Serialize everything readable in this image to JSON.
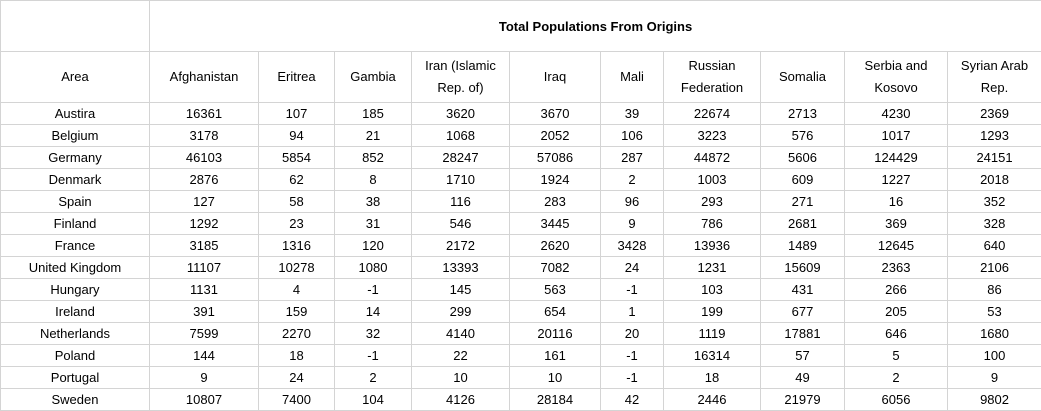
{
  "title": "Total Populations From Origins",
  "area_header": "Area",
  "columns": [
    "Afghanistan",
    "Eritrea",
    "Gambia",
    "Iran (Islamic Rep. of)",
    "Iraq",
    "Mali",
    "Russian Federation",
    "Somalia",
    "Serbia and Kosovo",
    "Syrian Arab Rep."
  ],
  "rows": [
    {
      "area": "Austira",
      "values": [
        "16361",
        "107",
        "185",
        "3620",
        "3670",
        "39",
        "22674",
        "2713",
        "4230",
        "2369"
      ]
    },
    {
      "area": "Belgium",
      "values": [
        "3178",
        "94",
        "21",
        "1068",
        "2052",
        "106",
        "3223",
        "576",
        "1017",
        "1293"
      ]
    },
    {
      "area": "Germany",
      "values": [
        "46103",
        "5854",
        "852",
        "28247",
        "57086",
        "287",
        "44872",
        "5606",
        "124429",
        "24151"
      ]
    },
    {
      "area": "Denmark",
      "values": [
        "2876",
        "62",
        "8",
        "1710",
        "1924",
        "2",
        "1003",
        "609",
        "1227",
        "2018"
      ]
    },
    {
      "area": "Spain",
      "values": [
        "127",
        "58",
        "38",
        "116",
        "283",
        "96",
        "293",
        "271",
        "16",
        "352"
      ]
    },
    {
      "area": "Finland",
      "values": [
        "1292",
        "23",
        "31",
        "546",
        "3445",
        "9",
        "786",
        "2681",
        "369",
        "328"
      ]
    },
    {
      "area": "France",
      "values": [
        "3185",
        "1316",
        "120",
        "2172",
        "2620",
        "3428",
        "13936",
        "1489",
        "12645",
        "640"
      ]
    },
    {
      "area": "United Kingdom",
      "values": [
        "11107",
        "10278",
        "1080",
        "13393",
        "7082",
        "24",
        "1231",
        "15609",
        "2363",
        "2106"
      ]
    },
    {
      "area": "Hungary",
      "values": [
        "1131",
        "4",
        "-1",
        "145",
        "563",
        "-1",
        "103",
        "431",
        "266",
        "86"
      ]
    },
    {
      "area": "Ireland",
      "values": [
        "391",
        "159",
        "14",
        "299",
        "654",
        "1",
        "199",
        "677",
        "205",
        "53"
      ]
    },
    {
      "area": "Netherlands",
      "values": [
        "7599",
        "2270",
        "32",
        "4140",
        "20116",
        "20",
        "1119",
        "17881",
        "646",
        "1680"
      ]
    },
    {
      "area": "Poland",
      "values": [
        "144",
        "18",
        "-1",
        "22",
        "161",
        "-1",
        "16314",
        "57",
        "5",
        "100"
      ]
    },
    {
      "area": "Portugal",
      "values": [
        "9",
        "24",
        "2",
        "10",
        "10",
        "-1",
        "18",
        "49",
        "2",
        "9"
      ]
    },
    {
      "area": "Sweden",
      "values": [
        "10807",
        "7400",
        "104",
        "4126",
        "28184",
        "42",
        "2446",
        "21979",
        "6056",
        "9802"
      ]
    }
  ]
}
